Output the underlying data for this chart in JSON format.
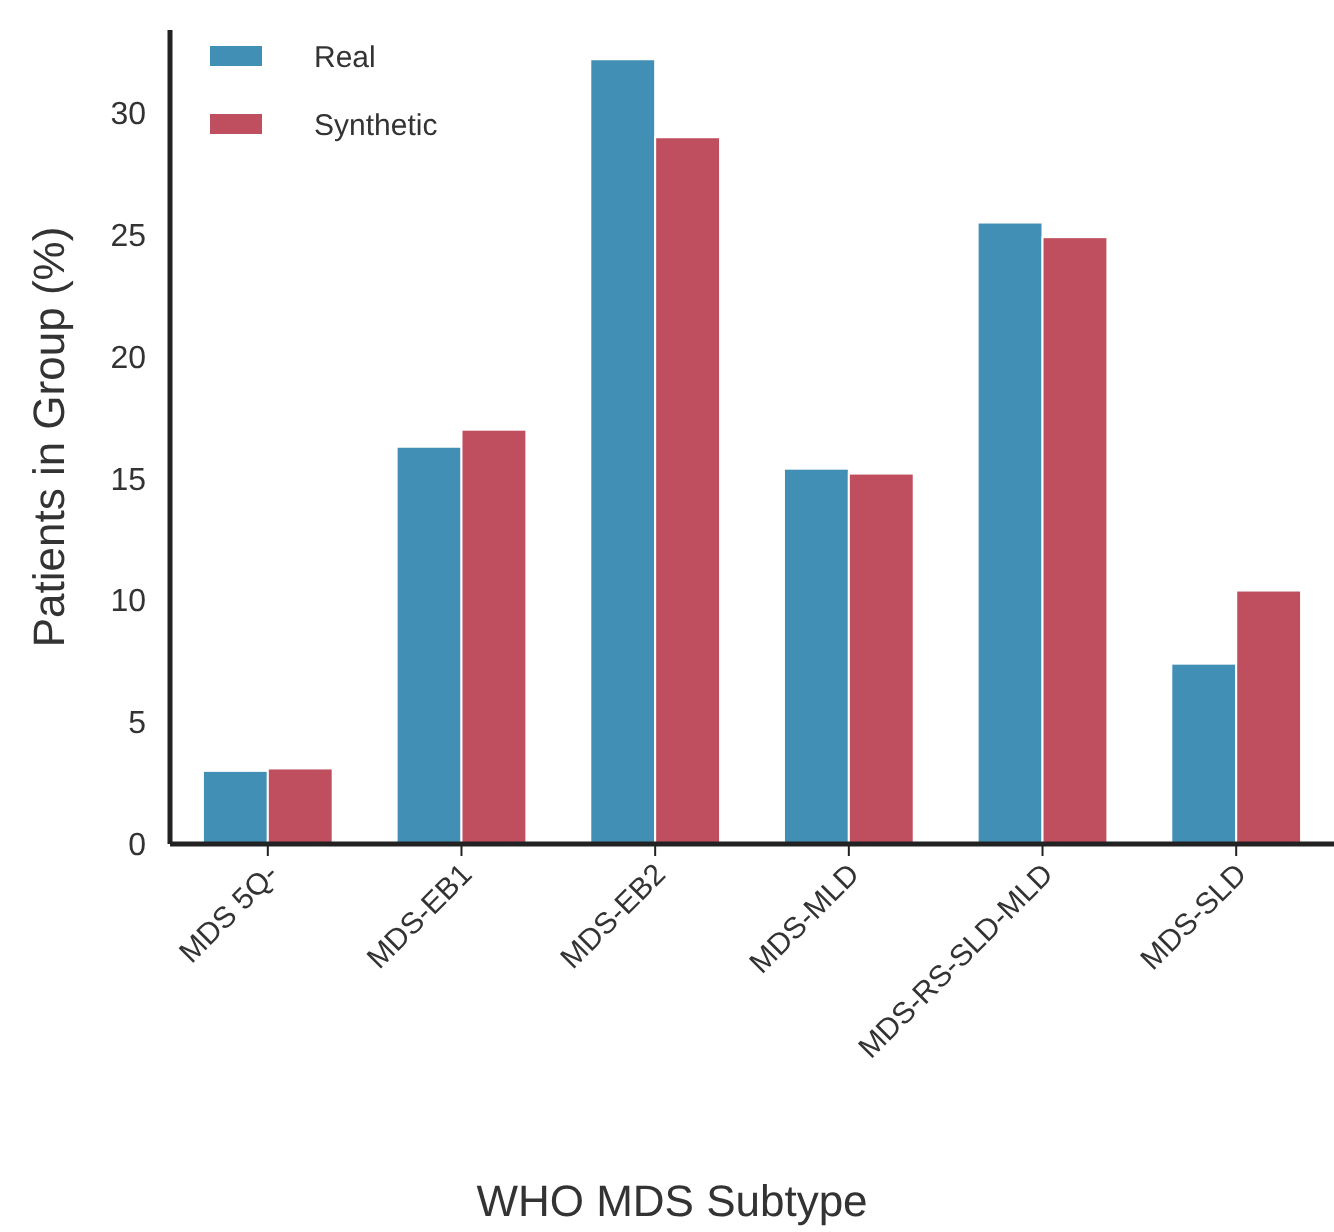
{
  "chart_data": {
    "type": "bar",
    "xlabel": "WHO MDS Subtype",
    "ylabel": "Patients in Group (%)",
    "categories": [
      "MDS 5Q-",
      "MDS-EB1",
      "MDS-EB2",
      "MDS-MLD",
      "MDS-RS-SLD-MLD",
      "MDS-SLD"
    ],
    "series": [
      {
        "name": "Real",
        "color": "#428fb5",
        "values": [
          3.0,
          16.3,
          32.2,
          15.4,
          25.5,
          7.4
        ]
      },
      {
        "name": "Synthetic",
        "color": "#bf4e5e",
        "values": [
          3.1,
          17.0,
          29.0,
          15.2,
          24.9,
          10.4
        ]
      }
    ],
    "ylim": [
      0,
      33.4
    ],
    "yticks": [
      0,
      5,
      10,
      15,
      20,
      25,
      30
    ],
    "grid": false,
    "legend": "top left"
  }
}
